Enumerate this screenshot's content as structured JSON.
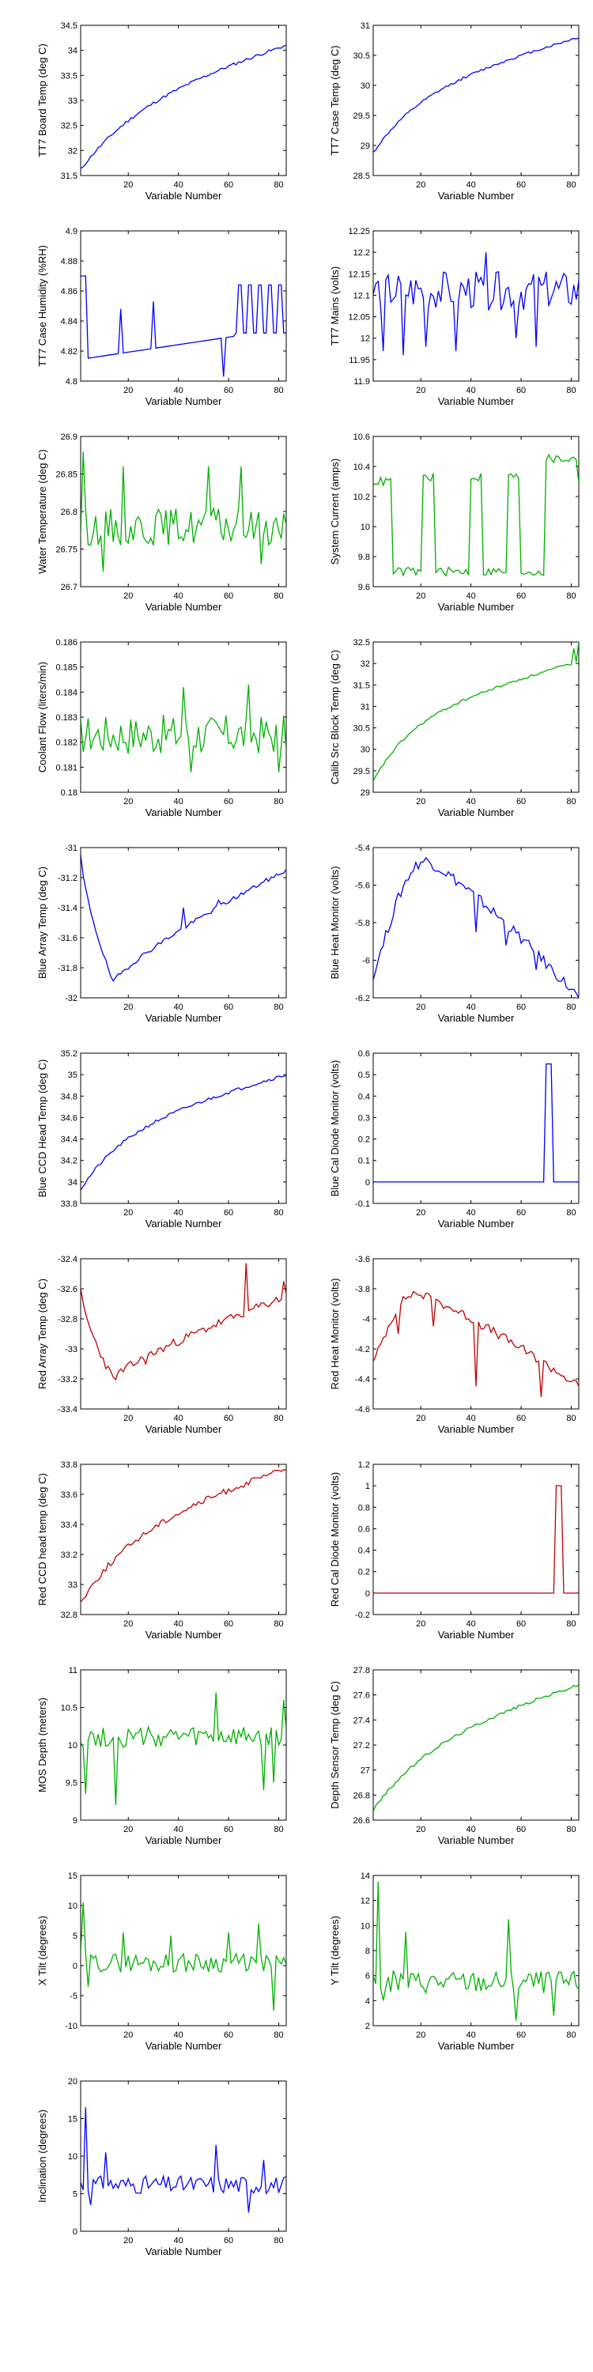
{
  "chart_data": [
    {
      "type": "line",
      "ylabel": "TT7 Board Temp (deg C)",
      "xlabel": "Variable Number",
      "xlim": [
        1,
        83
      ],
      "ylim": [
        31.5,
        34.5
      ],
      "yticks": [
        "31.5",
        "32",
        "32.5",
        "33",
        "33.5",
        "34",
        "34.5"
      ],
      "xticks": [
        "20",
        "40",
        "60",
        "80"
      ],
      "color": "#0000ff",
      "grid": false,
      "series": [
        {
          "shape": "rise",
          "start": 31.62,
          "end": 34.1,
          "curve": 0.55,
          "noise": 0.03,
          "spikes": [],
          "seed": 11
        }
      ]
    },
    {
      "type": "line",
      "ylabel": "TT7 Case Temp (deg C)",
      "xlabel": "Variable Number",
      "xlim": [
        1,
        83
      ],
      "ylim": [
        28.5,
        31
      ],
      "yticks": [
        "28.5",
        "29",
        "29.5",
        "30",
        "30.5",
        "31"
      ],
      "xticks": [
        "20",
        "40",
        "60",
        "80"
      ],
      "color": "#0000ff",
      "grid": false,
      "series": [
        {
          "shape": "rise",
          "start": 28.88,
          "end": 30.8,
          "curve": 0.7,
          "noise": 0.02,
          "spikes": [],
          "seed": 12
        }
      ]
    },
    {
      "type": "line",
      "ylabel": "TT7 Case Humidity (%RH)",
      "xlabel": "Variable Number",
      "xlim": [
        1,
        83
      ],
      "ylim": [
        4.8,
        4.9
      ],
      "yticks": [
        "4.8",
        "4.82",
        "4.84",
        "4.86",
        "4.88",
        "4.9"
      ],
      "xticks": [
        "20",
        "40",
        "60",
        "80"
      ],
      "color": "#0000ff",
      "grid": false,
      "series": [
        {
          "shape": "humidity",
          "seed": 13
        }
      ]
    },
    {
      "type": "line",
      "ylabel": "TT7 Mains  (volts)",
      "xlabel": "Variable Number",
      "xlim": [
        1,
        83
      ],
      "ylim": [
        11.9,
        12.25
      ],
      "yticks": [
        "11.9",
        "11.95",
        "12",
        "12.05",
        "12.1",
        "12.15",
        "12.2",
        "12.25"
      ],
      "xticks": [
        "20",
        "40",
        "60",
        "80"
      ],
      "color": "#0000ff",
      "grid": false,
      "series": [
        {
          "shape": "noise",
          "base": 12.11,
          "amp": 0.045,
          "spikes": [
            [
              5,
              11.97
            ],
            [
              13,
              11.96
            ],
            [
              22,
              11.98
            ],
            [
              34,
              11.97
            ],
            [
              46,
              12.2
            ],
            [
              58,
              12.0
            ],
            [
              66,
              11.98
            ]
          ],
          "seed": 14
        }
      ]
    },
    {
      "type": "line",
      "ylabel": "Water Temperature (deg C)",
      "xlabel": "Variable Number",
      "xlim": [
        1,
        83
      ],
      "ylim": [
        26.7,
        26.9
      ],
      "yticks": [
        "26.7",
        "26.75",
        "26.8",
        "26.85",
        "26.9"
      ],
      "xticks": [
        "20",
        "40",
        "60",
        "80"
      ],
      "color": "#00b000",
      "grid": false,
      "series": [
        {
          "shape": "noise",
          "base": 26.78,
          "amp": 0.025,
          "spikes": [
            [
              2,
              26.88
            ],
            [
              10,
              26.72
            ],
            [
              18,
              26.86
            ],
            [
              52,
              26.86
            ],
            [
              65,
              26.86
            ],
            [
              73,
              26.73
            ]
          ],
          "seed": 15
        }
      ]
    },
    {
      "type": "line",
      "ylabel": "System Current (amps)",
      "xlabel": "Variable Number",
      "xlim": [
        1,
        83
      ],
      "ylim": [
        9.6,
        10.6
      ],
      "yticks": [
        "9.6",
        "9.8",
        "10",
        "10.2",
        "10.4",
        "10.6"
      ],
      "xticks": [
        "20",
        "40",
        "60",
        "80"
      ],
      "color": "#00b000",
      "grid": false,
      "series": [
        {
          "shape": "square",
          "hi": 10.3,
          "lo": 9.7,
          "segments": [
            [
              1,
              10.3
            ],
            [
              9,
              9.7
            ],
            [
              21,
              10.33
            ],
            [
              26,
              9.7
            ],
            [
              40,
              10.33
            ],
            [
              45,
              9.7
            ],
            [
              55,
              10.33
            ],
            [
              60,
              9.7
            ],
            [
              70,
              10.45
            ],
            [
              83,
              10.3
            ]
          ],
          "seed": 16
        }
      ]
    },
    {
      "type": "line",
      "ylabel": "Coolant Flow (liters/min)",
      "xlabel": "Variable Number",
      "xlim": [
        1,
        83
      ],
      "ylim": [
        0.18,
        0.186
      ],
      "yticks": [
        "0.18",
        "0.181",
        "0.182",
        "0.183",
        "0.184",
        "0.185",
        "0.186"
      ],
      "xticks": [
        "20",
        "40",
        "60",
        "80"
      ],
      "color": "#00b000",
      "grid": false,
      "series": [
        {
          "shape": "noise",
          "base": 0.1823,
          "amp": 0.0008,
          "spikes": [
            [
              42,
              0.1842
            ],
            [
              45,
              0.1808
            ],
            [
              68,
              0.1843
            ],
            [
              80,
              0.1808
            ]
          ],
          "seed": 17
        }
      ]
    },
    {
      "type": "line",
      "ylabel": "Calib Src Block Temp (deg C)",
      "xlabel": "Variable Number",
      "xlim": [
        1,
        83
      ],
      "ylim": [
        29,
        32.5
      ],
      "yticks": [
        "29",
        "29.5",
        "30",
        "30.5",
        "31",
        "31.5",
        "32",
        "32.5"
      ],
      "xticks": [
        "20",
        "40",
        "60",
        "80"
      ],
      "color": "#00b000",
      "grid": false,
      "series": [
        {
          "shape": "rise",
          "start": 29.25,
          "end": 32.05,
          "curve": 0.9,
          "noise": 0.03,
          "spikes": [
            [
              81,
              32.35
            ],
            [
              83,
              32.5
            ]
          ],
          "seed": 18
        }
      ]
    },
    {
      "type": "line",
      "ylabel": "Blue Array Temp (deg C)",
      "xlabel": "Variable Number",
      "xlim": [
        1,
        83
      ],
      "ylim": [
        -32,
        -31
      ],
      "yticks": [
        "-32",
        "-31.8",
        "-31.6",
        "-31.4",
        "-31.2",
        "-31"
      ],
      "xticks": [
        "20",
        "40",
        "60",
        "80"
      ],
      "color": "#0000ff",
      "grid": false,
      "series": [
        {
          "shape": "dip",
          "start": -31.05,
          "low": -31.9,
          "lowAt": 14,
          "end": -31.15,
          "noise": 0.015,
          "spikes": [
            [
              42,
              -31.4
            ],
            [
              56,
              -31.35
            ],
            [
              78,
              -31.2
            ]
          ],
          "seed": 19
        }
      ]
    },
    {
      "type": "line",
      "ylabel": "Blue Heat Monitor (volts)",
      "xlabel": "Variable Number",
      "xlim": [
        1,
        83
      ],
      "ylim": [
        -6.2,
        -5.4
      ],
      "yticks": [
        "-6.2",
        "-6",
        "-5.8",
        "-5.6",
        "-5.4"
      ],
      "xticks": [
        "20",
        "40",
        "60",
        "80"
      ],
      "color": "#0000ff",
      "grid": false,
      "series": [
        {
          "shape": "hump",
          "start": -6.1,
          "peak": -5.47,
          "peakAt": 22,
          "end": -6.2,
          "noise": 0.03,
          "spikes": [
            [
              3,
              -6.0
            ],
            [
              42,
              -5.85
            ],
            [
              54,
              -5.92
            ],
            [
              66,
              -6.05
            ]
          ],
          "seed": 20
        }
      ]
    },
    {
      "type": "line",
      "ylabel": "Blue CCD Head Temp (deg C)",
      "xlabel": "Variable Number",
      "xlim": [
        1,
        83
      ],
      "ylim": [
        33.8,
        35.2
      ],
      "yticks": [
        "33.8",
        "34",
        "34.2",
        "34.4",
        "34.6",
        "34.8",
        "35",
        "35.2"
      ],
      "xticks": [
        "20",
        "40",
        "60",
        "80"
      ],
      "color": "#0000ff",
      "grid": false,
      "series": [
        {
          "shape": "rise",
          "start": 33.93,
          "end": 35.0,
          "curve": 0.75,
          "noise": 0.015,
          "spikes": [],
          "seed": 21
        }
      ]
    },
    {
      "type": "line",
      "ylabel": "Blue Cal Diode Monitor (volts)",
      "xlabel": "Variable Number",
      "xlim": [
        1,
        83
      ],
      "ylim": [
        -0.1,
        0.6
      ],
      "yticks": [
        "-0.1",
        "0",
        "0.1",
        "0.2",
        "0.3",
        "0.4",
        "0.5",
        "0.6"
      ],
      "xticks": [
        "20",
        "40",
        "60",
        "80"
      ],
      "color": "#0000ff",
      "grid": false,
      "series": [
        {
          "shape": "pulse",
          "base": 0.0,
          "level": 0.55,
          "from": 70,
          "to": 72,
          "seed": 22
        }
      ]
    },
    {
      "type": "line",
      "ylabel": "Red Array Temp (deg C)",
      "xlabel": "Variable Number",
      "xlim": [
        1,
        83
      ],
      "ylim": [
        -33.4,
        -32.4
      ],
      "yticks": [
        "-33.4",
        "-33.2",
        "-33",
        "-32.8",
        "-32.6",
        "-32.4"
      ],
      "xticks": [
        "20",
        "40",
        "60",
        "80"
      ],
      "color": "#c00000",
      "grid": false,
      "series": [
        {
          "shape": "dip",
          "start": -32.62,
          "low": -33.2,
          "lowAt": 14,
          "end": -32.65,
          "noise": 0.03,
          "spikes": [
            [
              27,
              -33.1
            ],
            [
              67,
              -32.43
            ],
            [
              82,
              -32.55
            ]
          ],
          "seed": 23
        }
      ]
    },
    {
      "type": "line",
      "ylabel": "Red Heat Monitor (volts)",
      "xlabel": "Variable Number",
      "xlim": [
        1,
        83
      ],
      "ylim": [
        -4.6,
        -3.6
      ],
      "yticks": [
        "-4.6",
        "-4.4",
        "-4.2",
        "-4",
        "-3.8",
        "-3.6"
      ],
      "xticks": [
        "20",
        "40",
        "60",
        "80"
      ],
      "color": "#c00000",
      "grid": false,
      "series": [
        {
          "shape": "hump",
          "start": -4.3,
          "peak": -3.83,
          "peakAt": 18,
          "end": -4.45,
          "noise": 0.03,
          "spikes": [
            [
              11,
              -4.1
            ],
            [
              25,
              -4.05
            ],
            [
              42,
              -4.45
            ],
            [
              68,
              -4.52
            ]
          ],
          "seed": 24
        }
      ]
    },
    {
      "type": "line",
      "ylabel": "Red CCD head temp (deg C)",
      "xlabel": "Variable Number",
      "xlim": [
        1,
        83
      ],
      "ylim": [
        32.8,
        33.8
      ],
      "yticks": [
        "32.8",
        "33",
        "33.2",
        "33.4",
        "33.6",
        "33.8"
      ],
      "xticks": [
        "20",
        "40",
        "60",
        "80"
      ],
      "color": "#c00000",
      "grid": false,
      "series": [
        {
          "shape": "rise",
          "start": 32.88,
          "end": 33.77,
          "curve": 0.65,
          "noise": 0.02,
          "spikes": [],
          "seed": 25
        }
      ]
    },
    {
      "type": "line",
      "ylabel": "Red Cal Diode Monitor (volts)",
      "xlabel": "Variable Number",
      "xlim": [
        1,
        83
      ],
      "ylim": [
        -0.2,
        1.2
      ],
      "yticks": [
        "-0.2",
        "0",
        "0.2",
        "0.4",
        "0.6",
        "0.8",
        "1",
        "1.2"
      ],
      "xticks": [
        "20",
        "40",
        "60",
        "80"
      ],
      "color": "#c00000",
      "grid": false,
      "series": [
        {
          "shape": "pulse",
          "base": 0.0,
          "level": 1.0,
          "from": 74,
          "to": 76,
          "seed": 26
        }
      ]
    },
    {
      "type": "line",
      "ylabel": "MOS Depth  (meters)",
      "xlabel": "Variable Number",
      "xlim": [
        1,
        83
      ],
      "ylim": [
        9,
        11
      ],
      "yticks": [
        "9",
        "9.5",
        "10",
        "10.5",
        "11"
      ],
      "xticks": [
        "20",
        "40",
        "60",
        "80"
      ],
      "color": "#00b000",
      "grid": false,
      "series": [
        {
          "shape": "noise",
          "base": 10.1,
          "amp": 0.14,
          "spikes": [
            [
              3,
              9.35
            ],
            [
              15,
              9.2
            ],
            [
              55,
              10.7
            ],
            [
              74,
              9.4
            ],
            [
              78,
              9.5
            ],
            [
              82,
              10.6
            ]
          ],
          "seed": 27
        }
      ]
    },
    {
      "type": "line",
      "ylabel": "Depth Sensor Temp (deg C)",
      "xlabel": "Variable Number",
      "xlim": [
        1,
        83
      ],
      "ylim": [
        26.6,
        27.8
      ],
      "yticks": [
        "26.6",
        "26.8",
        "27",
        "27.2",
        "27.4",
        "27.6",
        "27.8"
      ],
      "xticks": [
        "20",
        "40",
        "60",
        "80"
      ],
      "color": "#00b000",
      "grid": false,
      "series": [
        {
          "shape": "rise",
          "start": 26.68,
          "end": 27.68,
          "curve": 0.6,
          "noise": 0.012,
          "spikes": [],
          "seed": 28
        }
      ]
    },
    {
      "type": "line",
      "ylabel": "X Tilt  (degrees)",
      "xlabel": "Variable Number",
      "xlim": [
        1,
        83
      ],
      "ylim": [
        -10,
        15
      ],
      "yticks": [
        "-10",
        "-5",
        "0",
        "5",
        "10",
        "15"
      ],
      "xticks": [
        "20",
        "40",
        "60",
        "80"
      ],
      "color": "#00b000",
      "grid": false,
      "series": [
        {
          "shape": "noise",
          "base": 0.5,
          "amp": 1.6,
          "spikes": [
            [
              2,
              10.5
            ],
            [
              4,
              -3.5
            ],
            [
              18,
              5.5
            ],
            [
              37,
              5.0
            ],
            [
              60,
              5.5
            ],
            [
              72,
              7.0
            ],
            [
              78,
              -7.5
            ]
          ],
          "seed": 29
        }
      ]
    },
    {
      "type": "line",
      "ylabel": "Y Tilt  (degrees)",
      "xlabel": "Variable Number",
      "xlim": [
        1,
        83
      ],
      "ylim": [
        2,
        14
      ],
      "yticks": [
        "2",
        "4",
        "6",
        "8",
        "10",
        "12",
        "14"
      ],
      "xticks": [
        "20",
        "40",
        "60",
        "80"
      ],
      "color": "#00b000",
      "grid": false,
      "series": [
        {
          "shape": "noise",
          "base": 5.5,
          "amp": 0.9,
          "spikes": [
            [
              3,
              13.5
            ],
            [
              5,
              4.0
            ],
            [
              14,
              9.5
            ],
            [
              55,
              10.5
            ],
            [
              58,
              2.4
            ],
            [
              73,
              2.8
            ]
          ],
          "seed": 30
        }
      ]
    },
    {
      "type": "line",
      "ylabel": "Inclination  (degrees)",
      "xlabel": "Variable Number",
      "xlim": [
        1,
        83
      ],
      "ylim": [
        0,
        20
      ],
      "yticks": [
        "0",
        "5",
        "10",
        "15",
        "20"
      ],
      "xticks": [
        "20",
        "40",
        "60",
        "80"
      ],
      "color": "#0000ff",
      "grid": false,
      "series": [
        {
          "shape": "noise",
          "base": 6.2,
          "amp": 1.2,
          "spikes": [
            [
              3,
              16.5
            ],
            [
              5,
              3.5
            ],
            [
              11,
              10.5
            ],
            [
              55,
              11.5
            ],
            [
              68,
              2.5
            ],
            [
              74,
              9.5
            ]
          ],
          "seed": 31
        }
      ]
    }
  ]
}
